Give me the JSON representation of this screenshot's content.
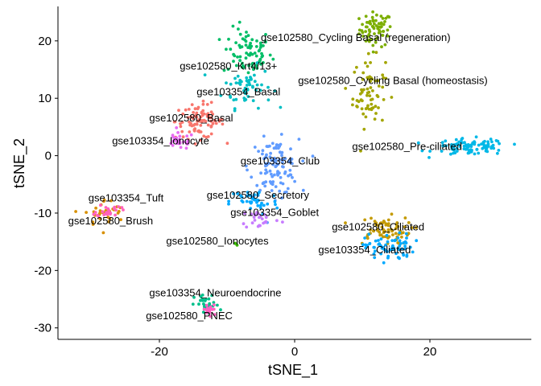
{
  "chart_data": {
    "type": "scatter",
    "xlabel": "tSNE_1",
    "ylabel": "tSNE_2",
    "xlim": [
      -35,
      35
    ],
    "ylim": [
      -32,
      26
    ],
    "xticks": [
      -20,
      0,
      20
    ],
    "yticks": [
      -30,
      -20,
      -10,
      0,
      10,
      20
    ],
    "grid": false,
    "legend": "none",
    "clusters": [
      {
        "label": "gse102580_Cycling Basal (regeneration)",
        "color": "#7CAE00",
        "center": [
          12,
          22
        ],
        "spread": [
          2,
          2.5
        ],
        "n": 70,
        "label_xy": [
          -5,
          20
        ]
      },
      {
        "label": "gse102580_Krt4/13+",
        "color": "#00BE67",
        "center": [
          -7,
          18
        ],
        "spread": [
          3,
          3.5
        ],
        "n": 75,
        "label_xy": [
          -17,
          15
        ]
      },
      {
        "label": "gse103354_Basal",
        "color": "#00BFC4",
        "center": [
          -7,
          12
        ],
        "spread": [
          3,
          3
        ],
        "n": 55,
        "label_xy": [
          -14.5,
          10.5
        ]
      },
      {
        "label": "gse102580_Cycling Basal (homeostasis)",
        "color": "#A3A500",
        "center": [
          11,
          11
        ],
        "spread": [
          2,
          5
        ],
        "n": 70,
        "label_xy": [
          0.5,
          12.5
        ]
      },
      {
        "label": "gse102580_Basal",
        "color": "#F8766D",
        "center": [
          -14,
          6
        ],
        "spread": [
          3,
          2.5
        ],
        "n": 90,
        "label_xy": [
          -21.5,
          6
        ]
      },
      {
        "label": "gse103354_Ionocyte",
        "color": "#E76BF3",
        "center": [
          -17,
          2.5
        ],
        "spread": [
          1.8,
          1.2
        ],
        "n": 30,
        "label_xy": [
          -27,
          2
        ]
      },
      {
        "label": "gse102580_Pre-ciliated",
        "color": "#00B8E7",
        "center": [
          26,
          1.5
        ],
        "spread": [
          4.5,
          1.2
        ],
        "n": 90,
        "label_xy": [
          8.5,
          1
        ]
      },
      {
        "label": "gse103354_Club",
        "color": "#619CFF",
        "center": [
          -3,
          -2
        ],
        "spread": [
          3,
          4
        ],
        "n": 110,
        "label_xy": [
          -8,
          -1.5
        ]
      },
      {
        "label": "gse102580_Secretory",
        "color": "#00A9FF",
        "center": [
          -6,
          -8
        ],
        "spread": [
          3,
          2
        ],
        "n": 40,
        "label_xy": [
          -13,
          -7.5
        ]
      },
      {
        "label": "gse103354_Goblet",
        "color": "#C77CFF",
        "center": [
          -5,
          -11
        ],
        "spread": [
          2.5,
          1.5
        ],
        "n": 25,
        "label_xy": [
          -9.5,
          -10.5
        ]
      },
      {
        "label": "gse103354_Tuft",
        "color": "#D89000",
        "center": [
          -28,
          -10
        ],
        "spread": [
          2.5,
          2
        ],
        "n": 35,
        "label_xy": [
          -30.5,
          -8
        ]
      },
      {
        "label": "gse102580_Brush",
        "color": "#FF62BC",
        "center": [
          -27.5,
          -9.5
        ],
        "spread": [
          1.5,
          1
        ],
        "n": 25,
        "label_xy": [
          -33.5,
          -12
        ]
      },
      {
        "label": "gse102580_Ionocytes",
        "color": "#39B600",
        "center": [
          -8.5,
          -15.5
        ],
        "spread": [
          0.4,
          0.4
        ],
        "n": 3,
        "label_xy": [
          -19,
          -15.5
        ]
      },
      {
        "label": "gse102580_Ciliated",
        "color": "#C49A00",
        "center": [
          13,
          -13
        ],
        "spread": [
          3.5,
          2
        ],
        "n": 70,
        "label_xy": [
          5.5,
          -13
        ]
      },
      {
        "label": "gse103354_Ciliated",
        "color": "#00A9FF",
        "center": [
          14,
          -16
        ],
        "spread": [
          3,
          2
        ],
        "n": 70,
        "label_xy": [
          3.5,
          -17
        ]
      },
      {
        "label": "gse103354_Neuroendocrine",
        "color": "#00C08B",
        "center": [
          -13,
          -26
        ],
        "spread": [
          1.5,
          1.5
        ],
        "n": 30,
        "label_xy": [
          -21.5,
          -24.5
        ]
      },
      {
        "label": "gse102580_PNEC",
        "color": "#FF61C3",
        "center": [
          -12.5,
          -27
        ],
        "spread": [
          1,
          1
        ],
        "n": 20,
        "label_xy": [
          -22,
          -28.5
        ]
      }
    ]
  }
}
